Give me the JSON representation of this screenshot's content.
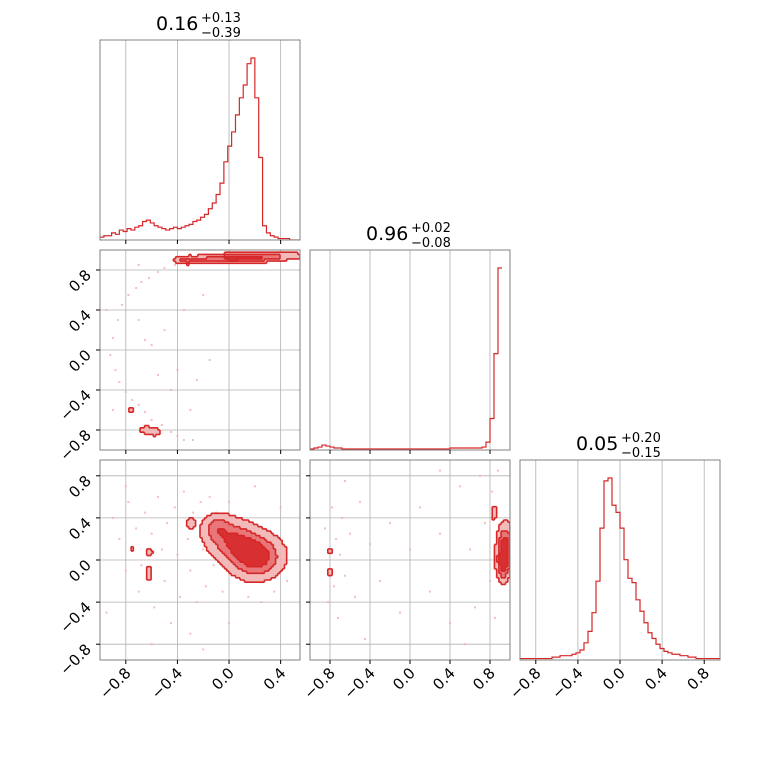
{
  "colors": {
    "accent": "#d62728",
    "contour_fill_light": "#f2b2b3",
    "contour_fill_mid": "#e87072",
    "contour_fill_dark": "#d62728",
    "scatter": "#eeb0b2",
    "grid": "#b0b0b0",
    "frame": "#808080"
  },
  "chart_data": {
    "type": "corner",
    "grid": true,
    "x_ticks": [
      "−0.8",
      "−0.4",
      "0.0",
      "0.4",
      "0.8"
    ],
    "y_ticks": [
      "−0.8",
      "−0.4",
      "0.0",
      "0.4",
      "0.8"
    ],
    "tick_values": [
      -0.8,
      -0.4,
      0.0,
      0.4,
      0.8
    ],
    "parameters": [
      {
        "range": [
          -1.0,
          0.55
        ],
        "title": {
          "median": "0.16",
          "plus": "+0.13",
          "minus": "−0.39"
        }
      },
      {
        "range": [
          -1.0,
          1.0
        ],
        "title": {
          "median": "0.96",
          "plus": "+0.02",
          "minus": "−0.08"
        }
      },
      {
        "range": [
          -0.95,
          0.95
        ],
        "title": {
          "median": "0.05",
          "plus": "+0.20",
          "minus": "−0.15"
        }
      }
    ],
    "histograms": [
      {
        "param": 0,
        "x_start": -1.0,
        "bin_width": 0.03,
        "counts": [
          2,
          3,
          3,
          5,
          4,
          7,
          6,
          8,
          7,
          9,
          10,
          13,
          14,
          12,
          10,
          9,
          8,
          7,
          8,
          9,
          8,
          9,
          10,
          11,
          13,
          14,
          16,
          18,
          22,
          26,
          32,
          40,
          55,
          66,
          76,
          88,
          100,
          109,
          124,
          128,
          100,
          58,
          10,
          5,
          3,
          2,
          1,
          1,
          1,
          0,
          0,
          0
        ]
      },
      {
        "param": 1,
        "x_start": -1.0,
        "bin_width": 0.04,
        "counts": [
          1,
          2,
          3,
          5,
          4,
          3,
          2,
          2,
          1,
          1,
          1,
          1,
          1,
          1,
          1,
          1,
          1,
          1,
          1,
          1,
          1,
          1,
          1,
          1,
          1,
          1,
          1,
          1,
          1,
          1,
          1,
          1,
          1,
          1,
          1,
          2,
          2,
          2,
          2,
          2,
          2,
          2,
          2,
          3,
          8,
          32,
          98,
          185
        ]
      },
      {
        "param": 2,
        "x_start": -0.95,
        "bin_width": 0.038,
        "counts": [
          1,
          1,
          1,
          1,
          1,
          1,
          1,
          1,
          2,
          2,
          3,
          3,
          3,
          4,
          5,
          7,
          12,
          20,
          33,
          55,
          92,
          125,
          127,
          108,
          103,
          92,
          70,
          57,
          54,
          42,
          34,
          26,
          19,
          15,
          11,
          8,
          6,
          5,
          4,
          4,
          3,
          3,
          2,
          2,
          1,
          1,
          1,
          1,
          1,
          1
        ]
      }
    ],
    "density_panels": [
      {
        "x_param": 0,
        "y_param": 1,
        "blobs": [
          {
            "cx": 0.1,
            "cy": 0.92,
            "sx": 0.26,
            "sy": 0.03,
            "rot": 0.05,
            "w": 1.0
          },
          {
            "cx": -0.33,
            "cy": 0.9,
            "sx": 0.05,
            "sy": 0.025,
            "rot": 0.0,
            "w": 0.45
          },
          {
            "cx": -0.61,
            "cy": -0.81,
            "sx": 0.06,
            "sy": 0.03,
            "rot": -0.3,
            "w": 0.45
          },
          {
            "cx": -0.76,
            "cy": -0.6,
            "sx": 0.02,
            "sy": 0.02,
            "rot": 0.0,
            "w": 0.3
          }
        ],
        "scatter": [
          [
            -0.92,
            -0.05
          ],
          [
            -0.9,
            0.12
          ],
          [
            -0.88,
            -0.2
          ],
          [
            -0.86,
            0.3
          ],
          [
            -0.85,
            -0.32
          ],
          [
            -0.83,
            0.45
          ],
          [
            -0.8,
            -0.42
          ],
          [
            -0.78,
            0.55
          ],
          [
            -0.75,
            -0.5
          ],
          [
            -0.72,
            0.62
          ],
          [
            -0.7,
            -0.55
          ],
          [
            -0.68,
            0.68
          ],
          [
            -0.65,
            -0.62
          ],
          [
            -0.62,
            0.72
          ],
          [
            -0.6,
            -0.7
          ],
          [
            -0.55,
            0.78
          ],
          [
            -0.52,
            -0.75
          ],
          [
            -0.5,
            0.82
          ],
          [
            -0.45,
            -0.82
          ],
          [
            -0.42,
            0.85
          ],
          [
            -0.4,
            -0.86
          ],
          [
            -0.35,
            0.88
          ],
          [
            -0.3,
            0.9
          ],
          [
            -0.28,
            -0.9
          ],
          [
            -0.25,
            0.91
          ],
          [
            -0.2,
            0.93
          ],
          [
            -0.15,
            0.9
          ],
          [
            -0.1,
            0.94
          ],
          [
            0.05,
            0.95
          ],
          [
            0.2,
            0.96
          ],
          [
            0.3,
            0.94
          ],
          [
            0.4,
            0.93
          ],
          [
            -0.2,
            0.55
          ],
          [
            -0.35,
            0.4
          ],
          [
            -0.45,
            -0.4
          ],
          [
            -0.5,
            0.2
          ],
          [
            -0.3,
            -0.6
          ],
          [
            -0.6,
            0.05
          ],
          [
            -0.7,
            0.3
          ],
          [
            -0.65,
            0.1
          ],
          [
            -0.55,
            -0.25
          ],
          [
            -0.25,
            -0.3
          ],
          [
            -0.15,
            -0.1
          ],
          [
            -0.7,
            0.85
          ],
          [
            -0.4,
            -0.2
          ],
          [
            -0.35,
            -0.9
          ],
          [
            -0.95,
            0.4
          ],
          [
            -0.9,
            -0.6
          ]
        ]
      },
      {
        "x_param": 0,
        "y_param": 2,
        "blobs": [
          {
            "cx": 0.22,
            "cy": 0.02,
            "sx": 0.12,
            "sy": 0.13,
            "rot": -0.65,
            "w": 1.0
          },
          {
            "cx": 0.04,
            "cy": 0.18,
            "sx": 0.13,
            "sy": 0.12,
            "rot": -0.55,
            "w": 0.85
          },
          {
            "cx": -0.1,
            "cy": 0.32,
            "sx": 0.07,
            "sy": 0.08,
            "rot": -0.4,
            "w": 0.5
          },
          {
            "cx": -0.3,
            "cy": 0.35,
            "sx": 0.03,
            "sy": 0.04,
            "rot": 0.0,
            "w": 0.35
          },
          {
            "cx": -0.62,
            "cy": -0.12,
            "sx": 0.02,
            "sy": 0.06,
            "rot": 0.0,
            "w": 0.35
          },
          {
            "cx": -0.62,
            "cy": 0.08,
            "sx": 0.025,
            "sy": 0.03,
            "rot": 0.0,
            "w": 0.3
          },
          {
            "cx": -0.75,
            "cy": 0.1,
            "sx": 0.02,
            "sy": 0.025,
            "rot": 0.0,
            "w": 0.25
          }
        ],
        "scatter": [
          [
            -0.9,
            0.4
          ],
          [
            -0.85,
            0.2
          ],
          [
            -0.8,
            -0.1
          ],
          [
            -0.78,
            0.55
          ],
          [
            -0.72,
            0.3
          ],
          [
            -0.7,
            -0.3
          ],
          [
            -0.68,
            -0.05
          ],
          [
            -0.65,
            0.45
          ],
          [
            -0.6,
            0.25
          ],
          [
            -0.58,
            -0.45
          ],
          [
            -0.55,
            0.6
          ],
          [
            -0.52,
            0.1
          ],
          [
            -0.5,
            -0.2
          ],
          [
            -0.48,
            0.35
          ],
          [
            -0.45,
            -0.6
          ],
          [
            -0.42,
            0.5
          ],
          [
            -0.4,
            0.05
          ],
          [
            -0.38,
            -0.35
          ],
          [
            -0.35,
            0.65
          ],
          [
            -0.32,
            0.2
          ],
          [
            -0.3,
            -0.1
          ],
          [
            -0.28,
            0.45
          ],
          [
            -0.25,
            -0.4
          ],
          [
            -0.22,
            0.55
          ],
          [
            -0.2,
            0.1
          ],
          [
            -0.18,
            -0.25
          ],
          [
            -0.15,
            0.6
          ],
          [
            -0.12,
            -0.05
          ],
          [
            -0.1,
            0.45
          ],
          [
            -0.05,
            -0.3
          ],
          [
            0.0,
            0.55
          ],
          [
            0.05,
            -0.15
          ],
          [
            0.1,
            0.4
          ],
          [
            0.15,
            -0.35
          ],
          [
            0.2,
            0.3
          ],
          [
            0.25,
            -0.4
          ],
          [
            0.3,
            0.15
          ],
          [
            0.35,
            -0.3
          ],
          [
            0.4,
            0.0
          ],
          [
            0.45,
            -0.2
          ],
          [
            -0.95,
            -0.5
          ],
          [
            -0.6,
            -0.8
          ],
          [
            -0.3,
            -0.7
          ],
          [
            0.0,
            -0.6
          ],
          [
            0.2,
            0.7
          ],
          [
            -0.8,
            0.7
          ],
          [
            -0.2,
            -0.85
          ],
          [
            0.4,
            0.5
          ]
        ]
      },
      {
        "x_param": 1,
        "y_param": 2,
        "blobs": [
          {
            "cx": 0.95,
            "cy": 0.12,
            "sx": 0.05,
            "sy": 0.14,
            "rot": 0.0,
            "w": 1.0
          },
          {
            "cx": 0.93,
            "cy": -0.05,
            "sx": 0.04,
            "sy": 0.1,
            "rot": 0.0,
            "w": 0.7
          },
          {
            "cx": 0.84,
            "cy": 0.45,
            "sx": 0.02,
            "sy": 0.05,
            "rot": 0.0,
            "w": 0.4
          },
          {
            "cx": -0.8,
            "cy": -0.12,
            "sx": 0.015,
            "sy": 0.04,
            "rot": 0.0,
            "w": 0.35
          },
          {
            "cx": -0.8,
            "cy": 0.08,
            "sx": 0.015,
            "sy": 0.03,
            "rot": 0.0,
            "w": 0.3
          }
        ],
        "scatter": [
          [
            -0.85,
            0.3
          ],
          [
            -0.82,
            -0.4
          ],
          [
            -0.78,
            0.5
          ],
          [
            -0.76,
            -0.25
          ],
          [
            -0.74,
            0.2
          ],
          [
            -0.72,
            -0.55
          ],
          [
            -0.7,
            0.05
          ],
          [
            -0.68,
            0.4
          ],
          [
            -0.65,
            -0.15
          ],
          [
            -0.6,
            0.25
          ],
          [
            -0.55,
            -0.35
          ],
          [
            -0.5,
            0.55
          ],
          [
            -0.4,
            0.15
          ],
          [
            -0.3,
            -0.2
          ],
          [
            -0.2,
            0.35
          ],
          [
            -0.1,
            -0.5
          ],
          [
            0.0,
            0.1
          ],
          [
            0.1,
            0.5
          ],
          [
            0.2,
            -0.3
          ],
          [
            0.3,
            0.25
          ],
          [
            0.4,
            -0.6
          ],
          [
            0.5,
            0.7
          ],
          [
            0.6,
            0.1
          ],
          [
            0.65,
            -0.45
          ],
          [
            0.7,
            0.8
          ],
          [
            0.75,
            0.35
          ],
          [
            0.8,
            -0.2
          ],
          [
            0.82,
            0.65
          ],
          [
            0.85,
            -0.55
          ],
          [
            0.88,
            0.85
          ],
          [
            -0.65,
            0.75
          ],
          [
            -0.45,
            -0.75
          ],
          [
            0.3,
            0.85
          ],
          [
            0.55,
            -0.8
          ]
        ]
      }
    ]
  }
}
